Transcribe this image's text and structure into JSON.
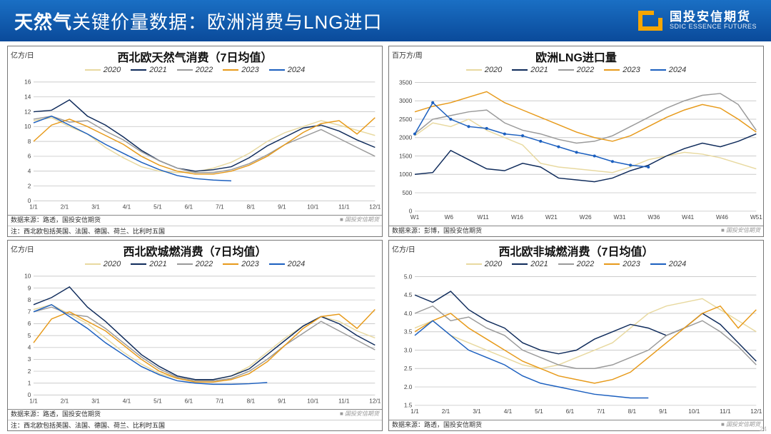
{
  "header": {
    "title_prefix": "天然气",
    "title_rest": "关键价量数据：欧洲消费与LNG进口",
    "logo_cn": "国投安信期货",
    "logo_en": "SDIC ESSENCE FUTURES"
  },
  "colors": {
    "y2020": "#e8d9a0",
    "y2021": "#0f2b5b",
    "y2022": "#9a9a9a",
    "y2023": "#e79a1a",
    "y2024": "#1b5fbf",
    "grid": "#cfcfcf",
    "text": "#333333"
  },
  "legend_labels": [
    "2020",
    "2021",
    "2022",
    "2023",
    "2024"
  ],
  "panels": {
    "p0": {
      "title": "西北欧天然气消费（7日均值）",
      "ylabel": "亿方/日",
      "source": "数据来源：路透，国投安信期货",
      "watermark": "■ 国投安信期货",
      "note": "注：西北欧包括英国、法国、德国、荷兰、比利时五国",
      "ylim": [
        0,
        16
      ],
      "ytick_step": 2,
      "xticks": [
        "1/1",
        "2/1",
        "3/1",
        "4/1",
        "5/1",
        "6/1",
        "7/1",
        "8/1",
        "9/1",
        "10/1",
        "11/1",
        "12/1"
      ],
      "series": {
        "2020": [
          10.8,
          11.2,
          10.0,
          9.0,
          7.2,
          5.8,
          4.6,
          4.0,
          3.8,
          3.9,
          4.4,
          5.2,
          6.4,
          8.0,
          9.2,
          10.0,
          10.8,
          10.2,
          9.5,
          8.8
        ],
        "2021": [
          12.0,
          12.2,
          13.6,
          11.4,
          10.2,
          8.6,
          6.8,
          5.4,
          4.4,
          4.0,
          4.2,
          4.6,
          5.8,
          7.4,
          8.6,
          9.8,
          10.2,
          9.4,
          8.2,
          7.2
        ],
        "2022": [
          11.0,
          11.4,
          10.6,
          10.8,
          9.4,
          8.2,
          6.6,
          5.4,
          4.4,
          3.8,
          3.8,
          4.2,
          5.0,
          6.2,
          7.6,
          8.6,
          9.6,
          8.4,
          7.2,
          6.0
        ],
        "2023": [
          8.0,
          10.2,
          11.0,
          10.0,
          8.8,
          7.6,
          6.0,
          4.8,
          4.0,
          3.6,
          3.6,
          4.0,
          4.8,
          6.0,
          7.6,
          9.2,
          10.4,
          10.8,
          9.0,
          11.2
        ],
        "2024": [
          10.5,
          11.4,
          10.2,
          9.0,
          7.6,
          6.4,
          5.2,
          4.2,
          3.4,
          3.0,
          2.8,
          2.7
        ]
      }
    },
    "p1": {
      "title": "欧洲LNG进口量",
      "ylabel": "百万方/周",
      "source": "数据来源：彭博，国投安信期货",
      "watermark": "■ 国投安信期货",
      "ylim": [
        0,
        3500
      ],
      "ytick_step": 500,
      "xticks": [
        "W1",
        "W6",
        "W11",
        "W16",
        "W21",
        "W26",
        "W31",
        "W36",
        "W41",
        "W46",
        "W51"
      ],
      "series": {
        "2020": [
          2050,
          2400,
          2300,
          2500,
          2200,
          2000,
          1800,
          1300,
          1200,
          1150,
          1100,
          1050,
          1200,
          1400,
          1500,
          1600,
          1550,
          1450,
          1300,
          1150
        ],
        "2021": [
          1000,
          1050,
          1650,
          1400,
          1150,
          1100,
          1300,
          1200,
          900,
          850,
          800,
          900,
          1100,
          1250,
          1500,
          1700,
          1850,
          1750,
          1900,
          2100
        ],
        "2022": [
          2100,
          2500,
          2600,
          2700,
          2750,
          2400,
          2200,
          2100,
          1950,
          1850,
          1900,
          2050,
          2300,
          2550,
          2800,
          3000,
          3150,
          3200,
          2900,
          2200
        ],
        "2023": [
          2700,
          2850,
          2950,
          3100,
          3250,
          2950,
          2750,
          2550,
          2350,
          2150,
          2000,
          1900,
          2050,
          2300,
          2550,
          2750,
          2900,
          2800,
          2500,
          2150
        ],
        "2024": [
          2100,
          2950,
          2500,
          2300,
          2250,
          2100,
          2050,
          1900,
          1750,
          1600,
          1500,
          1350,
          1250,
          1200
        ]
      },
      "markers_2024": true
    },
    "p2": {
      "title": "西北欧城燃消费（7日均值）",
      "ylabel": "亿方/日",
      "source": "数据来源：路透，国投安信期货",
      "watermark": "■ 国投安信期货",
      "note": "注：西北欧包括英国、法国、德国、荷兰、比利时五国",
      "ylim": [
        0,
        10
      ],
      "ytick_step": 1,
      "xticks": [
        "1/1",
        "2/1",
        "3/1",
        "4/1",
        "5/1",
        "6/1",
        "7/1",
        "8/1",
        "9/1",
        "10/1",
        "11/1",
        "12/1"
      ],
      "series": {
        "2020": [
          7.2,
          7.6,
          6.8,
          6.0,
          4.8,
          3.6,
          2.6,
          1.8,
          1.4,
          1.2,
          1.3,
          1.6,
          2.4,
          3.6,
          4.8,
          5.8,
          6.6,
          6.2,
          5.4,
          4.8
        ],
        "2021": [
          7.6,
          8.2,
          9.1,
          7.4,
          6.2,
          4.8,
          3.4,
          2.4,
          1.6,
          1.3,
          1.3,
          1.6,
          2.2,
          3.4,
          4.6,
          5.8,
          6.6,
          6.0,
          5.0,
          4.2
        ],
        "2022": [
          7.0,
          7.4,
          6.8,
          6.6,
          5.6,
          4.4,
          3.2,
          2.2,
          1.5,
          1.2,
          1.2,
          1.4,
          2.0,
          3.0,
          4.2,
          5.2,
          6.2,
          5.4,
          4.6,
          3.8
        ],
        "2023": [
          4.4,
          6.4,
          7.0,
          6.2,
          5.4,
          4.2,
          3.0,
          2.0,
          1.4,
          1.1,
          1.1,
          1.3,
          1.8,
          2.8,
          4.2,
          5.6,
          6.6,
          6.8,
          5.6,
          7.2
        ],
        "2024": [
          7.0,
          7.6,
          6.6,
          5.6,
          4.4,
          3.4,
          2.4,
          1.7,
          1.2,
          1.0,
          0.9,
          0.9,
          0.95,
          1.05
        ]
      }
    },
    "p3": {
      "title": "西北欧非城燃消费（7日均值）",
      "ylabel": "亿方/日",
      "source": "数据来源：路透，国投安信期货",
      "watermark": "■ 国投安信期货",
      "ylim": [
        1.5,
        5.0
      ],
      "ytick_step": 0.5,
      "xticks": [
        "1/1",
        "2/1",
        "3/1",
        "4/1",
        "5/1",
        "6/1",
        "7/1",
        "8/1",
        "9/1",
        "10/1",
        "11/1",
        "12/1"
      ],
      "series": {
        "2020": [
          3.6,
          3.8,
          3.4,
          3.2,
          3.0,
          2.8,
          2.6,
          2.5,
          2.6,
          2.8,
          3.0,
          3.2,
          3.6,
          4.0,
          4.2,
          4.3,
          4.4,
          4.1,
          3.8,
          3.5
        ],
        "2021": [
          4.5,
          4.3,
          4.6,
          4.1,
          3.8,
          3.6,
          3.2,
          3.0,
          2.9,
          3.0,
          3.3,
          3.5,
          3.7,
          3.6,
          3.4,
          3.6,
          4.0,
          3.7,
          3.2,
          2.7
        ],
        "2022": [
          4.0,
          4.2,
          3.8,
          3.9,
          3.6,
          3.4,
          3.0,
          2.8,
          2.6,
          2.5,
          2.5,
          2.6,
          2.8,
          3.0,
          3.4,
          3.6,
          3.8,
          3.5,
          3.1,
          2.6
        ],
        "2023": [
          3.5,
          3.8,
          4.0,
          3.6,
          3.3,
          3.0,
          2.7,
          2.5,
          2.3,
          2.2,
          2.1,
          2.2,
          2.4,
          2.8,
          3.2,
          3.6,
          4.0,
          4.2,
          3.6,
          4.1
        ],
        "2024": [
          3.4,
          3.8,
          3.4,
          3.0,
          2.8,
          2.6,
          2.3,
          2.1,
          2.0,
          1.9,
          1.8,
          1.75,
          1.7,
          1.7
        ]
      }
    }
  },
  "page_number": "24"
}
